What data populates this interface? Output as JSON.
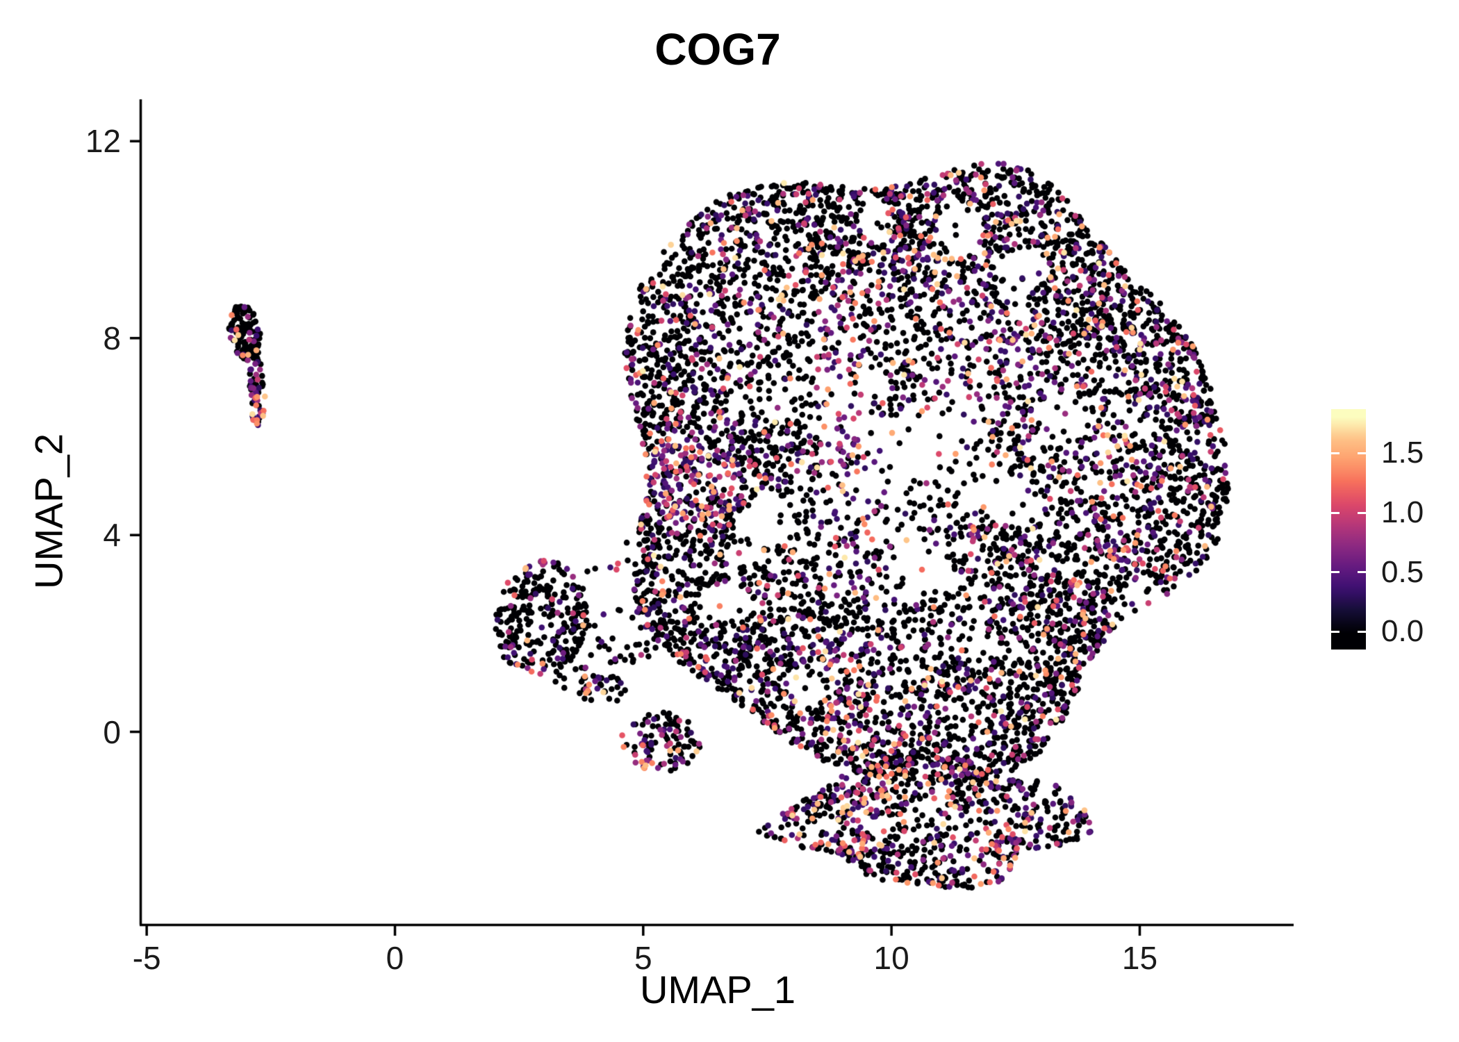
{
  "chart_data": {
    "type": "scatter",
    "title": "COG7",
    "xlabel": "UMAP_1",
    "ylabel": "UMAP_2",
    "xlim": [
      -5.1,
      18.1
    ],
    "ylim": [
      -3.9,
      12.85
    ],
    "grid": false,
    "legend_position": "right",
    "point_radius_px": 4.3,
    "xticks": [
      {
        "value": -5,
        "label": "-5"
      },
      {
        "value": 0,
        "label": "0"
      },
      {
        "value": 5,
        "label": "5"
      },
      {
        "value": 10,
        "label": "10"
      },
      {
        "value": 15,
        "label": "15"
      }
    ],
    "yticks": [
      {
        "value": 12,
        "label": "12"
      },
      {
        "value": 8,
        "label": "8"
      },
      {
        "value": 4,
        "label": "4"
      },
      {
        "value": 0,
        "label": "0"
      }
    ],
    "colorbar": {
      "vmin": -0.15,
      "vmax": 1.87,
      "ticks": [
        {
          "value": 1.5,
          "label": "1.5"
        },
        {
          "value": 1.0,
          "label": "1.0"
        },
        {
          "value": 0.5,
          "label": "0.5"
        },
        {
          "value": 0.0,
          "label": "0.0"
        }
      ]
    },
    "value_max": 1.8,
    "colormap_name": "magma",
    "colormap_stops": [
      {
        "t": 0.0,
        "hex": "#000004"
      },
      {
        "t": 0.1,
        "hex": "#150e37"
      },
      {
        "t": 0.2,
        "hex": "#3b0f70"
      },
      {
        "t": 0.3,
        "hex": "#641a80"
      },
      {
        "t": 0.4,
        "hex": "#8c2981"
      },
      {
        "t": 0.5,
        "hex": "#b73779"
      },
      {
        "t": 0.6,
        "hex": "#de4968"
      },
      {
        "t": 0.7,
        "hex": "#f7705c"
      },
      {
        "t": 0.8,
        "hex": "#fe9f6d"
      },
      {
        "t": 0.9,
        "hex": "#fec287"
      },
      {
        "t": 1.0,
        "hex": "#fcfdbf"
      }
    ],
    "clusters": [
      {
        "name": "left-satellite-top",
        "shape": "ellipse",
        "cx": -3.02,
        "cy": 8.15,
        "rx": 0.34,
        "ry": 0.62,
        "rot": 10,
        "n": 120,
        "p0": 0.87,
        "edge": 0.5,
        "vpow": 1.6,
        "hotspots": []
      },
      {
        "name": "left-satellite-tail",
        "shape": "ellipse",
        "cx": -2.78,
        "cy": 6.9,
        "rx": 0.16,
        "ry": 0.75,
        "rot": 3,
        "n": 60,
        "p0": 0.55,
        "edge": 0.5,
        "vpow": 2.0,
        "hotspots": [
          {
            "x": -2.75,
            "y": 6.35,
            "rx": 0.22,
            "ry": 0.35,
            "p0": 0.2
          }
        ]
      },
      {
        "name": "midleft-cluster",
        "shape": "ellipse",
        "cx": 2.95,
        "cy": 2.3,
        "rx": 0.92,
        "ry": 1.2,
        "rot": -10,
        "n": 260,
        "p0": 0.82,
        "edge": 0.45,
        "vpow": 2.0,
        "hotspots": [
          {
            "x": 2.5,
            "y": 3.2,
            "rx": 0.32,
            "ry": 0.3,
            "p0": 0.5
          },
          {
            "x": 2.6,
            "y": 1.35,
            "rx": 0.4,
            "ry": 0.4,
            "p0": 0.55
          }
        ]
      },
      {
        "name": "midleft-tail",
        "shape": "ellipse",
        "cx": 3.95,
        "cy": 0.95,
        "rx": 0.75,
        "ry": 0.38,
        "rot": -15,
        "n": 45,
        "p0": 0.75,
        "edge": 0.5,
        "vpow": 2.0,
        "hotspots": []
      },
      {
        "name": "midleft-east-sparse",
        "shape": "ellipse",
        "cx": 4.7,
        "cy": 1.95,
        "rx": 0.95,
        "ry": 0.6,
        "rot": 10,
        "n": 40,
        "p0": 0.8,
        "edge": 0.5,
        "vpow": 2.0,
        "hotspots": []
      },
      {
        "name": "midleft-upper-sparse",
        "shape": "ellipse",
        "cx": 4.4,
        "cy": 3.4,
        "rx": 0.75,
        "ry": 0.55,
        "rot": 0,
        "n": 10,
        "p0": 0.85,
        "edge": 0.5,
        "vpow": 2.0,
        "hotspots": []
      },
      {
        "name": "small-south-cluster",
        "shape": "ellipse",
        "cx": 5.35,
        "cy": -0.2,
        "rx": 0.8,
        "ry": 0.6,
        "rot": -5,
        "n": 110,
        "p0": 0.62,
        "edge": 0.45,
        "vpow": 2.0,
        "hotspots": [
          {
            "x": 4.95,
            "y": -0.55,
            "rx": 0.3,
            "ry": 0.27,
            "p0": 0.25
          }
        ]
      },
      {
        "name": "main-blob",
        "shape": "blob",
        "cx": 10.4,
        "cy": 5.45,
        "r": 6.1,
        "sx": 0.98,
        "sy": 1.02,
        "wobble": [
          {
            "k": 5,
            "a": 0.06,
            "ph": 2.0
          },
          {
            "k": 3,
            "a": 0.05,
            "ph": 0.7
          },
          {
            "k": 8,
            "a": 0.025,
            "ph": 4.2
          }
        ],
        "n": 6800,
        "p0": 0.74,
        "edge": 0.36,
        "vpow": 2.1,
        "holes": [
          {
            "x": 11.4,
            "y": 10.25,
            "r": 0.5,
            "p": 0.9
          },
          {
            "x": 12.7,
            "y": 9.4,
            "r": 0.45,
            "p": 0.9
          },
          {
            "x": 9.6,
            "y": 10.4,
            "r": 0.35,
            "p": 0.8
          },
          {
            "x": 7.5,
            "y": 4.3,
            "r": 0.55,
            "p": 0.88
          },
          {
            "x": 10.6,
            "y": 3.3,
            "r": 0.6,
            "p": 0.85
          },
          {
            "x": 12.4,
            "y": 4.7,
            "r": 0.5,
            "p": 0.8
          },
          {
            "x": 13.4,
            "y": 6.4,
            "r": 0.5,
            "p": 0.82
          },
          {
            "x": 15.0,
            "y": 2.6,
            "r": 0.5,
            "p": 0.8
          },
          {
            "x": 6.7,
            "y": 2.6,
            "r": 0.45,
            "p": 0.85
          },
          {
            "x": 11.0,
            "y": 6.0,
            "r": 0.5,
            "p": 0.6
          },
          {
            "x": 8.3,
            "y": 0.95,
            "r": 0.4,
            "p": 0.75
          }
        ],
        "hotspots": [
          {
            "x": 5.9,
            "y": 5.0,
            "rx": 1.15,
            "ry": 0.85,
            "p0": 0.33
          },
          {
            "x": 9.0,
            "y": 6.9,
            "rx": 0.55,
            "ry": 2.3,
            "p0": 0.38
          },
          {
            "x": 9.3,
            "y": 4.5,
            "rx": 0.5,
            "ry": 1.2,
            "p0": 0.45
          },
          {
            "x": 8.9,
            "y": 0.9,
            "rx": 1.05,
            "ry": 1.15,
            "p0": 0.5
          },
          {
            "x": 14.6,
            "y": 5.0,
            "rx": 1.0,
            "ry": 1.6,
            "p0": 0.6
          },
          {
            "x": 12.0,
            "y": 7.6,
            "rx": 1.35,
            "ry": 1.25,
            "p0": 0.62
          },
          {
            "x": 10.3,
            "y": 9.9,
            "rx": 1.1,
            "ry": 0.9,
            "p0": 0.62
          }
        ]
      },
      {
        "name": "south-blob",
        "shape": "blob",
        "cx": 10.8,
        "cy": -1.8,
        "r": 2.05,
        "sx": 1.45,
        "sy": 0.62,
        "wobble": [
          {
            "k": 4,
            "a": 0.12,
            "ph": 1.1
          },
          {
            "k": 7,
            "a": 0.06,
            "ph": 3.3
          }
        ],
        "n": 800,
        "p0": 0.66,
        "edge": 0.42,
        "vpow": 2.0,
        "holes": [],
        "hotspots": [
          {
            "x": 9.4,
            "y": -1.5,
            "rx": 0.6,
            "ry": 0.8,
            "p0": 0.35
          },
          {
            "x": 12.6,
            "y": -2.5,
            "rx": 0.8,
            "ry": 0.5,
            "p0": 0.5
          }
        ]
      }
    ]
  },
  "colors": {
    "background": "#ffffff",
    "axis": "#000000",
    "tick_text": "#1a1a1a",
    "title_text": "#000000"
  }
}
